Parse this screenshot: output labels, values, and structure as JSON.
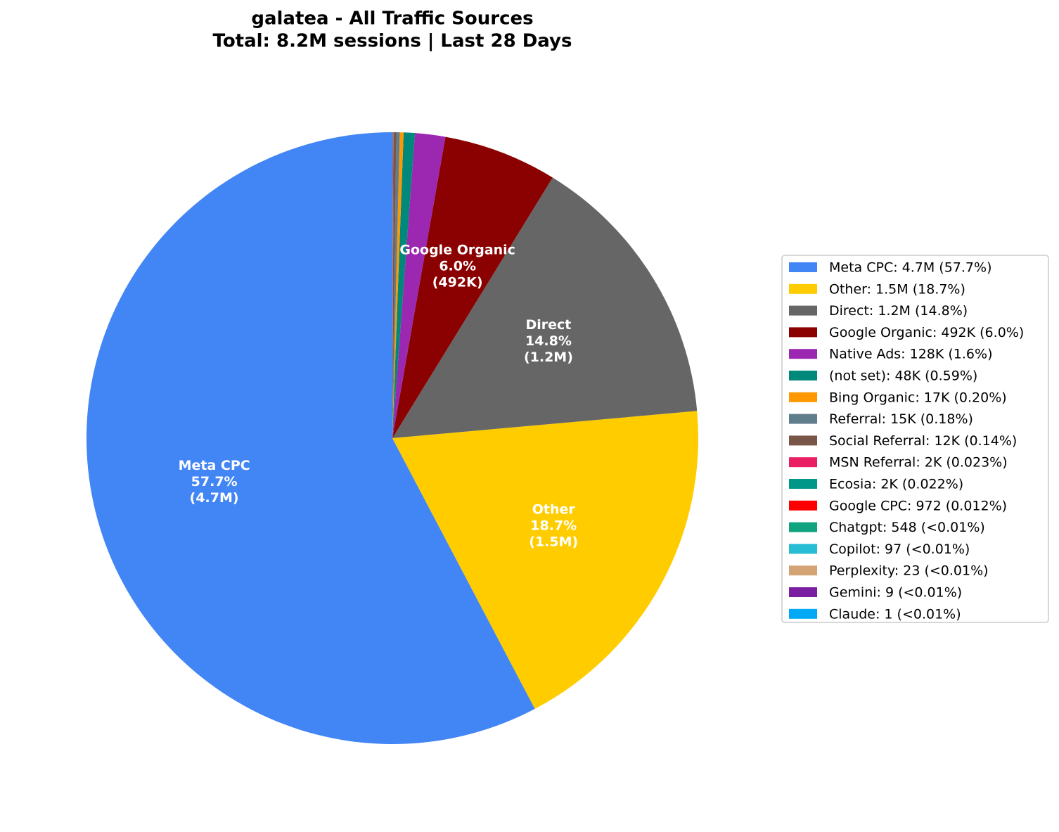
{
  "chart_data": {
    "type": "pie",
    "title": "galatea - All Traffic Sources",
    "subtitle": "Total: 8.2M sessions | Last 28 Days",
    "start_angle": 90,
    "direction": "counterclockwise",
    "legend": "right",
    "categories": [
      "Meta CPC: 4.7M (57.7%)",
      "Other: 1.5M (18.7%)",
      "Direct: 1.2M (14.8%)",
      "Google Organic: 492K (6.0%)",
      "Native Ads: 128K (1.6%)",
      "(not set): 48K (0.59%)",
      "Bing Organic: 17K (0.20%)",
      "Referral: 15K (0.18%)",
      "Social Referral: 12K (0.14%)",
      "MSN Referral: 2K (0.023%)",
      "Ecosia: 2K (0.022%)",
      "Google CPC: 972 (0.012%)",
      "Chatgpt: 548 (<0.01%)",
      "Copilot: 97 (<0.01%)",
      "Perplexity: 23 (<0.01%)",
      "Gemini: 9 (<0.01%)",
      "Claude: 1 (<0.01%)"
    ],
    "values": [
      57.7,
      18.7,
      14.8,
      6.0,
      1.6,
      0.59,
      0.2,
      0.18,
      0.14,
      0.023,
      0.022,
      0.012,
      0.0067,
      0.0012,
      0.00028,
      0.00011,
      1.2e-05
    ],
    "colors": [
      "#4285F4",
      "#FFCC00",
      "#666666",
      "#8B0000",
      "#9C27B0",
      "#00897B",
      "#FF9800",
      "#607D8B",
      "#795548",
      "#E91E63",
      "#009688",
      "#FF0000",
      "#10A37F",
      "#26BCD4",
      "#D4A373",
      "#7B1FA2",
      "#03A9F4"
    ],
    "slice_labels": [
      {
        "name": "Meta CPC",
        "percent": "57.7%",
        "sessions": "(4.7M)"
      },
      {
        "name": "Other",
        "percent": "18.7%",
        "sessions": "(1.5M)"
      },
      {
        "name": "Direct",
        "percent": "14.8%",
        "sessions": "(1.2M)"
      },
      {
        "name": "Google Organic",
        "percent": "6.0%",
        "sessions": "(492K)"
      },
      null,
      null,
      null,
      null,
      null,
      null,
      null,
      null,
      null,
      null,
      null,
      null,
      null
    ]
  }
}
